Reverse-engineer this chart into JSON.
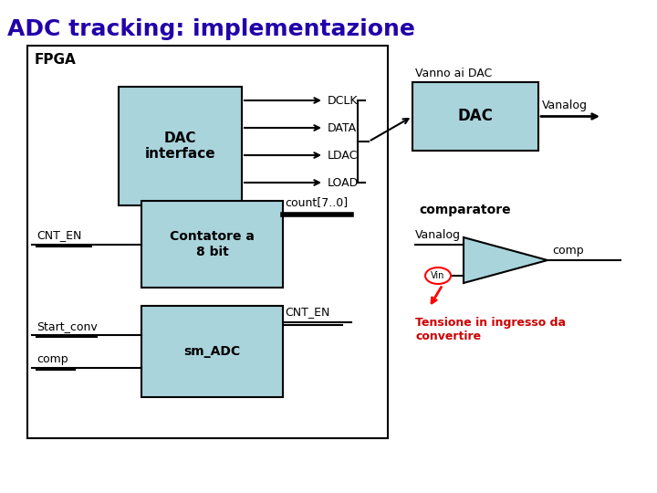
{
  "title": "ADC tracking: implementazione",
  "title_color": "#2200AA",
  "title_fontsize": 18,
  "bg_color": "#FFFFFF",
  "block_fill": "#AAD4DC",
  "block_edge": "#000000",
  "signals_dac": [
    "DCLK",
    "DATA",
    "LDAC",
    "LOAD"
  ],
  "vanno_ai_dac": "Vanno ai DAC",
  "vanalog_label": "Vanalog",
  "count_label": "count[7..0]",
  "cnt_en_label": "CNT_EN",
  "start_conv_label": "Start_conv",
  "comp_label": "comp",
  "comparatore_label": "comparatore",
  "vanalog2_label": "Vanalog",
  "vin_label": "Vin",
  "comp2_label": "comp",
  "tensione_label": "Tensione in ingresso da\nconvertire",
  "tensione_color": "#CC0000",
  "dac_label": "DAC",
  "dac_interface_label": "DAC\ninterface",
  "contatore_label": "Contatore a\n8 bit",
  "sm_adc_label": "sm_ADC",
  "fpga_label": "FPGA"
}
